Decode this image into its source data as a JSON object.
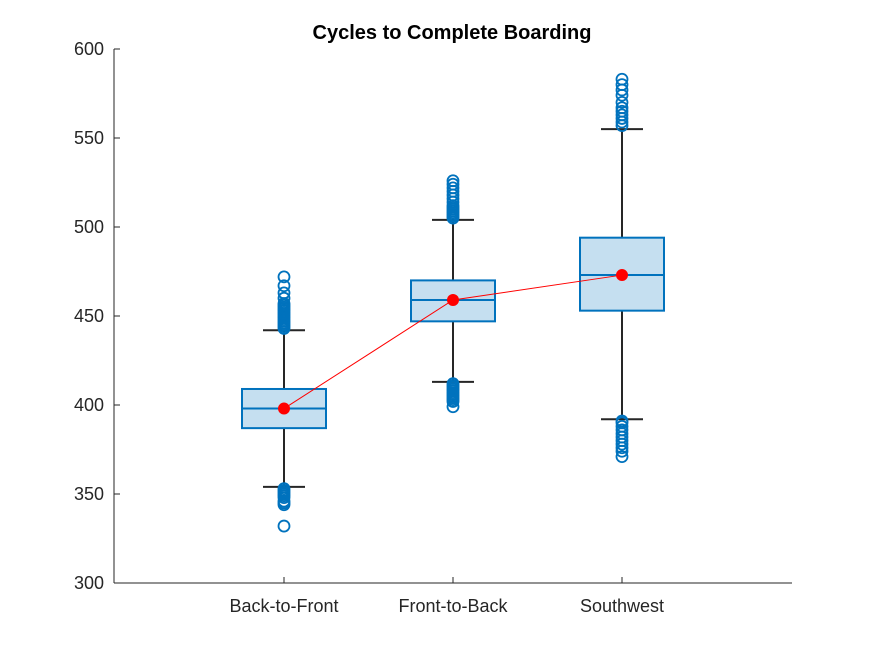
{
  "chart_data": {
    "type": "box",
    "title": "Cycles to Complete Boarding",
    "xlabel": "",
    "ylabel": "",
    "ylim": [
      300,
      600
    ],
    "yticks": [
      300,
      350,
      400,
      450,
      500,
      550,
      600
    ],
    "categories": [
      "Back-to-Front",
      "Front-to-Back",
      "Southwest"
    ],
    "boxes": [
      {
        "category": "Back-to-Front",
        "whisker_low": 354,
        "q1": 387,
        "median": 398,
        "q3": 409,
        "whisker_high": 442,
        "mean": 398,
        "outliers": [
          332,
          344,
          345,
          346,
          348,
          349,
          350,
          351,
          352,
          353,
          443,
          444,
          445,
          446,
          447,
          448,
          449,
          450,
          451,
          452,
          453,
          454,
          455,
          456,
          457,
          460,
          463,
          467,
          472
        ]
      },
      {
        "category": "Front-to-Back",
        "whisker_low": 413,
        "q1": 447,
        "median": 459,
        "q3": 470,
        "whisker_high": 504,
        "mean": 459,
        "outliers": [
          399,
          402,
          403,
          404,
          405,
          406,
          407,
          408,
          409,
          410,
          411,
          412,
          505,
          506,
          507,
          508,
          509,
          510,
          511,
          512,
          514,
          516,
          518,
          520,
          522,
          524,
          526
        ]
      },
      {
        "category": "Southwest",
        "whisker_low": 392,
        "q1": 453,
        "median": 473,
        "q3": 494,
        "whisker_high": 555,
        "mean": 473,
        "outliers": [
          371,
          374,
          376,
          378,
          380,
          382,
          384,
          386,
          388,
          390,
          391,
          557,
          559,
          561,
          563,
          565,
          567,
          570,
          574,
          577,
          580,
          583
        ]
      }
    ],
    "mean_line": {
      "values": [
        398,
        459,
        473
      ],
      "color": "#ff0000"
    },
    "colors": {
      "box_edge": "#0072bd",
      "box_fill": "#c5dff0",
      "whisker": "#262626",
      "outlier": "#0072bd",
      "mean_marker": "#ff0000",
      "axis": "#262626"
    },
    "grid": false,
    "legend": "none"
  }
}
